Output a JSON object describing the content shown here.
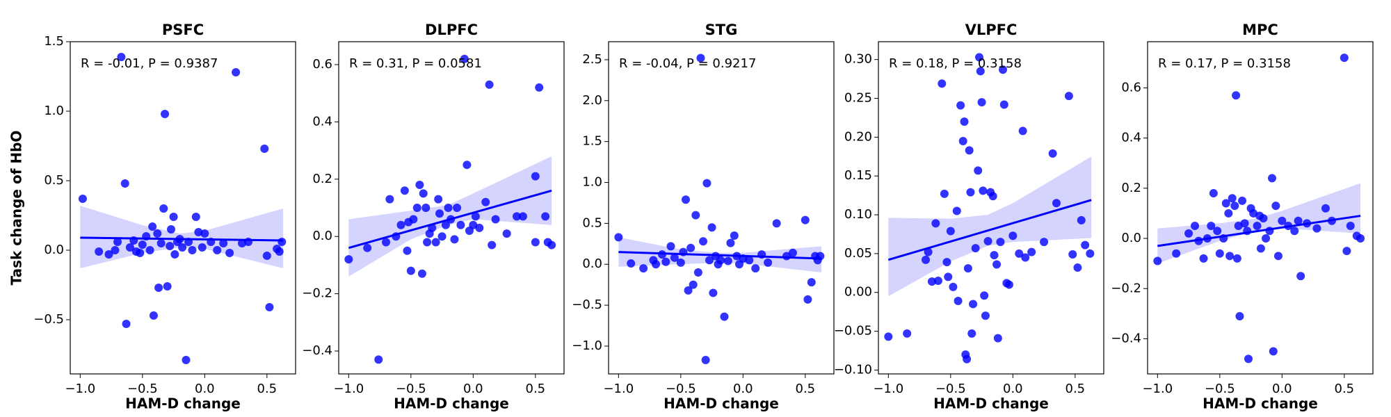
{
  "chart_data": [
    {
      "type": "scatter",
      "title": "PSFC",
      "x_label": "HAM-D change",
      "y_label": "Task change of HbO",
      "annotation": "R = -0.01, P = 0.9387",
      "color": "#0000ff",
      "band_color": "#ccccff",
      "x": [
        -0.98,
        -0.85,
        -0.77,
        -0.72,
        -0.7,
        -0.67,
        -0.64,
        -0.63,
        -0.6,
        -0.57,
        -0.55,
        -0.52,
        -0.5,
        -0.47,
        -0.44,
        -0.42,
        -0.41,
        -0.38,
        -0.37,
        -0.35,
        -0.33,
        -0.32,
        -0.3,
        -0.28,
        -0.27,
        -0.25,
        -0.24,
        -0.22,
        -0.2,
        -0.18,
        -0.15,
        -0.13,
        -0.1,
        -0.07,
        -0.05,
        -0.02,
        0.0,
        0.05,
        0.1,
        0.15,
        0.2,
        0.25,
        0.3,
        0.35,
        0.48,
        0.5,
        0.52,
        0.58,
        0.6,
        0.62
      ],
      "y": [
        0.37,
        -0.01,
        -0.03,
        0.0,
        0.06,
        1.39,
        0.48,
        -0.53,
        0.02,
        0.07,
        -0.01,
        -0.02,
        0.04,
        0.1,
        0.0,
        0.17,
        -0.47,
        0.12,
        -0.27,
        0.05,
        0.3,
        0.98,
        -0.26,
        0.03,
        0.15,
        0.24,
        -0.03,
        0.06,
        0.08,
        0.02,
        -0.79,
        0.06,
        0.0,
        0.24,
        0.13,
        0.02,
        0.12,
        0.06,
        0.0,
        0.05,
        -0.02,
        1.28,
        0.05,
        0.06,
        0.73,
        -0.04,
        -0.41,
        0.01,
        -0.01,
        0.06
      ],
      "fit": {
        "x": [
          -1.0,
          0.63
        ],
        "y": [
          0.09,
          0.07
        ]
      },
      "band": {
        "x": [
          -1.0,
          -0.5,
          -0.2,
          0.0,
          0.63
        ],
        "lower": [
          -0.13,
          -0.02,
          0.02,
          0.01,
          -0.13
        ],
        "upper": [
          0.32,
          0.18,
          0.12,
          0.14,
          0.3
        ]
      },
      "xlim": [
        -1.08,
        0.73
      ],
      "ylim": [
        -0.89,
        1.5
      ],
      "xticks": [
        {
          "value": -1.0,
          "label": "−1.0"
        },
        {
          "value": -0.5,
          "label": "−0.5"
        },
        {
          "value": 0.0,
          "label": "0.0"
        },
        {
          "value": 0.5,
          "label": "0.5"
        }
      ],
      "yticks": [
        {
          "value": -0.5,
          "label": "−0.5"
        },
        {
          "value": 0.0,
          "label": "0.0"
        },
        {
          "value": 0.5,
          "label": "0.5"
        },
        {
          "value": 1.0,
          "label": "1.0"
        },
        {
          "value": 1.5,
          "label": "1.5"
        }
      ]
    },
    {
      "type": "scatter",
      "title": "DLPFC",
      "x_label": "HAM-D change",
      "annotation": "R = 0.31, P = 0.0581",
      "color": "#0000ff",
      "band_color": "#ccccff",
      "x": [
        -1.0,
        -0.85,
        -0.76,
        -0.7,
        -0.67,
        -0.62,
        -0.58,
        -0.55,
        -0.53,
        -0.52,
        -0.5,
        -0.48,
        -0.45,
        -0.43,
        -0.41,
        -0.4,
        -0.38,
        -0.37,
        -0.35,
        -0.33,
        -0.3,
        -0.28,
        -0.27,
        -0.25,
        -0.22,
        -0.2,
        -0.18,
        -0.15,
        -0.13,
        -0.1,
        -0.07,
        -0.05,
        -0.03,
        0.0,
        0.02,
        0.05,
        0.1,
        0.13,
        0.15,
        0.18,
        0.27,
        0.35,
        0.4,
        0.5,
        0.5,
        0.53,
        0.58,
        0.6,
        0.63
      ],
      "y": [
        -0.08,
        -0.04,
        -0.43,
        -0.02,
        0.13,
        0.0,
        0.04,
        0.16,
        -0.05,
        0.05,
        -0.12,
        0.06,
        0.1,
        0.18,
        -0.13,
        0.15,
        0.1,
        -0.02,
        0.01,
        0.03,
        -0.02,
        0.13,
        0.08,
        0.0,
        0.04,
        0.1,
        0.06,
        -0.01,
        0.1,
        0.04,
        0.62,
        0.25,
        0.02,
        0.04,
        0.07,
        0.03,
        0.12,
        0.53,
        -0.03,
        0.06,
        0.01,
        0.07,
        0.07,
        0.21,
        -0.02,
        0.52,
        0.07,
        -0.02,
        -0.03
      ],
      "fit": {
        "x": [
          -1.0,
          0.63
        ],
        "y": [
          -0.04,
          0.16
        ]
      },
      "band": {
        "x": [
          -1.0,
          -0.5,
          -0.2,
          0.0,
          0.63
        ],
        "lower": [
          -0.14,
          -0.01,
          0.04,
          0.06,
          0.04
        ],
        "upper": [
          0.06,
          0.09,
          0.11,
          0.15,
          0.28
        ]
      },
      "xlim": [
        -1.08,
        0.73
      ],
      "ylim": [
        -0.48,
        0.68
      ],
      "xticks": [
        {
          "value": -1.0,
          "label": "−1.0"
        },
        {
          "value": -0.5,
          "label": "−0.5"
        },
        {
          "value": 0.0,
          "label": "0.0"
        },
        {
          "value": 0.5,
          "label": "0.5"
        }
      ],
      "yticks": [
        {
          "value": -0.4,
          "label": "−0.4"
        },
        {
          "value": -0.2,
          "label": "−0.2"
        },
        {
          "value": 0.0,
          "label": "0.0"
        },
        0.2,
        0.4,
        0.6
      ]
    },
    {
      "type": "scatter",
      "title": "STG",
      "x_label": "HAM-D change",
      "annotation": "R = -0.04, P = 0.9217",
      "color": "#0000ff",
      "band_color": "#ccccff",
      "x": [
        -1.0,
        -0.9,
        -0.8,
        -0.72,
        -0.7,
        -0.65,
        -0.62,
        -0.58,
        -0.55,
        -0.5,
        -0.48,
        -0.46,
        -0.44,
        -0.42,
        -0.4,
        -0.38,
        -0.36,
        -0.34,
        -0.32,
        -0.3,
        -0.29,
        -0.27,
        -0.25,
        -0.24,
        -0.22,
        -0.2,
        -0.18,
        -0.15,
        -0.12,
        -0.1,
        -0.07,
        -0.05,
        -0.03,
        0.0,
        0.05,
        0.1,
        0.15,
        0.2,
        0.27,
        0.35,
        0.4,
        0.5,
        0.52,
        0.55,
        0.58,
        0.6,
        0.62
      ],
      "y": [
        0.33,
        0.01,
        -0.05,
        0.05,
        0.0,
        0.12,
        0.03,
        0.22,
        0.08,
        0.02,
        0.15,
        0.79,
        -0.32,
        0.2,
        -0.25,
        0.6,
        -0.1,
        2.52,
        0.28,
        -1.17,
        0.99,
        0.05,
        0.45,
        -0.35,
        0.1,
        0.0,
        0.05,
        -0.64,
        0.04,
        0.26,
        0.35,
        0.1,
        0.0,
        0.07,
        0.05,
        -0.05,
        0.12,
        0.02,
        0.5,
        0.1,
        0.14,
        0.54,
        -0.43,
        -0.22,
        0.1,
        0.05,
        0.1
      ],
      "fit": {
        "x": [
          -1.0,
          0.63
        ],
        "y": [
          0.15,
          0.07
        ]
      },
      "band": {
        "x": [
          -1.0,
          -0.5,
          -0.2,
          0.0,
          0.63
        ],
        "lower": [
          -0.03,
          0.0,
          0.02,
          0.01,
          -0.1
        ],
        "upper": [
          0.33,
          0.18,
          0.14,
          0.14,
          0.22
        ]
      },
      "xlim": [
        -1.08,
        0.73
      ],
      "ylim": [
        -1.34,
        2.72
      ],
      "xticks": [
        {
          "value": -1.0,
          "label": "−1.0"
        },
        {
          "value": -0.5,
          "label": "−0.5"
        },
        {
          "value": 0.0,
          "label": "0.0"
        },
        {
          "value": 0.5,
          "label": "0.5"
        }
      ],
      "yticks": [
        {
          "value": -1.0,
          "label": "−1.0"
        },
        {
          "value": -0.5,
          "label": "−0.5"
        },
        {
          "value": 0.0,
          "label": "0.0"
        },
        0.5,
        {
          "value": 1.0,
          "label": "1.0"
        },
        1.5,
        {
          "value": 2.0,
          "label": "2.0"
        },
        2.5
      ]
    },
    {
      "type": "scatter",
      "title": "VLPFC",
      "x_label": "HAM-D change",
      "annotation": "R = 0.18, P = 0.3158",
      "color": "#0000ff",
      "band_color": "#ccccff",
      "x": [
        -1.0,
        -0.85,
        -0.7,
        -0.68,
        -0.65,
        -0.62,
        -0.6,
        -0.57,
        -0.55,
        -0.53,
        -0.52,
        -0.5,
        -0.48,
        -0.45,
        -0.44,
        -0.42,
        -0.4,
        -0.39,
        -0.38,
        -0.37,
        -0.36,
        -0.35,
        -0.34,
        -0.33,
        -0.32,
        -0.3,
        -0.28,
        -0.27,
        -0.26,
        -0.25,
        -0.24,
        -0.23,
        -0.22,
        -0.2,
        -0.18,
        -0.16,
        -0.15,
        -0.13,
        -0.12,
        -0.1,
        -0.08,
        -0.07,
        -0.05,
        -0.03,
        0.0,
        0.05,
        0.08,
        0.1,
        0.15,
        0.25,
        0.32,
        0.35,
        0.45,
        0.48,
        0.52,
        0.55,
        0.58,
        0.62
      ],
      "y": [
        -0.057,
        -0.053,
        0.042,
        0.052,
        0.014,
        0.089,
        0.015,
        0.269,
        0.127,
        0.039,
        0.02,
        0.079,
        0.007,
        0.105,
        -0.011,
        0.241,
        0.195,
        0.22,
        -0.08,
        -0.086,
        0.031,
        0.183,
        0.129,
        -0.053,
        -0.015,
        0.057,
        0.157,
        0.303,
        0.285,
        0.245,
        0.131,
        -0.004,
        -0.03,
        0.066,
        0.129,
        0.124,
        0.048,
        0.036,
        -0.059,
        0.065,
        0.287,
        0.242,
        0.012,
        0.01,
        0.073,
        0.05,
        0.208,
        0.045,
        0.052,
        0.065,
        0.179,
        0.115,
        0.253,
        0.049,
        0.032,
        0.093,
        0.061,
        0.05
      ],
      "fit": {
        "x": [
          -1.0,
          0.63
        ],
        "y": [
          0.042,
          0.119
        ]
      },
      "band": {
        "x": [
          -1.0,
          -0.5,
          -0.2,
          0.0,
          0.63
        ],
        "lower": [
          -0.005,
          0.04,
          0.06,
          0.065,
          0.07
        ],
        "upper": [
          0.096,
          0.095,
          0.1,
          0.115,
          0.175
        ]
      },
      "xlim": [
        -1.08,
        0.73
      ],
      "ylim": [
        -0.105,
        0.323
      ],
      "xticks": [
        {
          "value": -1.0,
          "label": "−1.0"
        },
        {
          "value": -0.5,
          "label": "−0.5"
        },
        {
          "value": 0.0,
          "label": "0.0"
        },
        0.5
      ],
      "yticks": [
        {
          "value": -0.1,
          "label": "−0.10"
        },
        {
          "value": -0.05,
          "label": "−0.05"
        },
        {
          "value": 0.0,
          "label": "0.00"
        },
        0.05,
        {
          "value": 0.1,
          "label": "0.10"
        },
        0.15,
        {
          "value": 0.2,
          "label": "0.20"
        },
        0.25,
        {
          "value": 0.3,
          "label": "0.30"
        }
      ]
    },
    {
      "type": "scatter",
      "title": "MPC",
      "x_label": "HAM-D change",
      "annotation": "R = 0.17, P = 0.3158",
      "color": "#0000ff",
      "band_color": "#ccccff",
      "x": [
        -1.0,
        -0.85,
        -0.75,
        -0.7,
        -0.67,
        -0.63,
        -0.6,
        -0.57,
        -0.55,
        -0.52,
        -0.5,
        -0.47,
        -0.45,
        -0.43,
        -0.42,
        -0.4,
        -0.38,
        -0.37,
        -0.36,
        -0.35,
        -0.34,
        -0.32,
        -0.3,
        -0.28,
        -0.27,
        -0.25,
        -0.23,
        -0.2,
        -0.18,
        -0.17,
        -0.15,
        -0.13,
        -0.1,
        -0.08,
        -0.07,
        -0.05,
        -0.03,
        0.0,
        0.05,
        0.1,
        0.13,
        0.15,
        0.2,
        0.28,
        0.35,
        0.4,
        0.5,
        0.52,
        0.55,
        0.6,
        0.63
      ],
      "y": [
        -0.09,
        -0.06,
        0.02,
        0.05,
        -0.01,
        -0.08,
        0.0,
        0.05,
        0.18,
        0.03,
        -0.06,
        0.0,
        0.14,
        0.1,
        -0.07,
        0.16,
        0.13,
        0.57,
        -0.08,
        0.05,
        -0.31,
        0.15,
        0.06,
        0.03,
        -0.48,
        0.12,
        0.1,
        0.05,
        0.09,
        -0.04,
        0.08,
        0.0,
        0.03,
        0.24,
        -0.45,
        0.13,
        -0.07,
        0.07,
        0.05,
        0.03,
        0.07,
        -0.15,
        0.06,
        0.04,
        0.12,
        0.07,
        0.72,
        -0.05,
        0.05,
        0.01,
        0.0
      ],
      "fit": {
        "x": [
          -1.0,
          0.63
        ],
        "y": [
          -0.03,
          0.09
        ]
      },
      "band": {
        "x": [
          -1.0,
          -0.5,
          -0.2,
          0.0,
          0.63
        ],
        "lower": [
          -0.1,
          -0.01,
          0.03,
          0.04,
          0.02
        ],
        "upper": [
          0.04,
          0.06,
          0.08,
          0.11,
          0.22
        ]
      },
      "xlim": [
        -1.08,
        0.73
      ],
      "ylim": [
        -0.54,
        0.784
      ],
      "xticks": [
        {
          "value": -1.0,
          "label": "−1.0"
        },
        {
          "value": -0.5,
          "label": "−0.5"
        },
        {
          "value": 0.0,
          "label": "0.0"
        },
        0.5
      ],
      "yticks": [
        {
          "value": -0.4,
          "label": "−0.4"
        },
        {
          "value": -0.2,
          "label": "−0.2"
        },
        {
          "value": 0.0,
          "label": "0.0"
        },
        0.2,
        0.4,
        0.6
      ]
    }
  ]
}
